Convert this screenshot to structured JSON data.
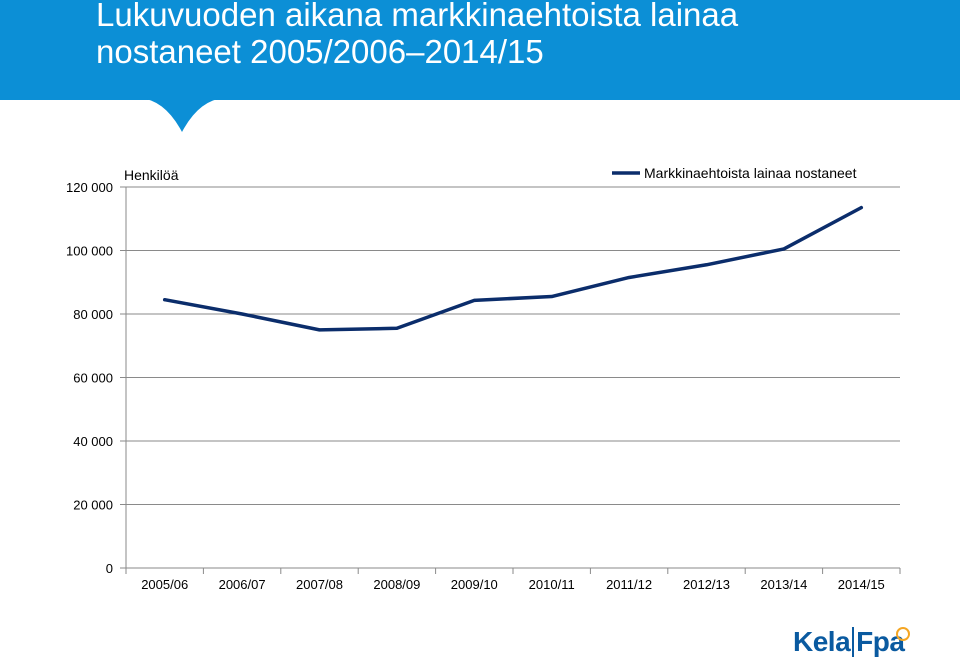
{
  "header": {
    "title_line1": "Lukuvuoden aikana markkinaehtoista lainaa",
    "title_line2": "nostaneet 2005/2006–2014/15"
  },
  "colors": {
    "header_bg": "#0c8fd6",
    "line": "#0b2d6b",
    "grid": "#8a8a8a",
    "logo": "#0a5aa0",
    "logo_badge": "#f5a623"
  },
  "chart_data": {
    "type": "line",
    "ylabel": "Henkilöä",
    "categories": [
      "2005/06",
      "2006/07",
      "2007/08",
      "2008/09",
      "2009/10",
      "2010/11",
      "2011/12",
      "2012/13",
      "2013/14",
      "2014/15"
    ],
    "y_tick_labels": [
      "0",
      "20 000",
      "40 000",
      "60 000",
      "80 000",
      "100 000",
      "120 000"
    ],
    "ylim": [
      0,
      120000
    ],
    "y_ticks": [
      0,
      20000,
      40000,
      60000,
      80000,
      100000,
      120000
    ],
    "grid": true,
    "legend_position": "top-right",
    "series": [
      {
        "name": "Markkinaehtoista lainaa nostaneet",
        "values": [
          84500,
          80000,
          75000,
          75500,
          84300,
          85500,
          91500,
          95500,
          100500,
          113500
        ]
      }
    ]
  },
  "logo": {
    "part1": "Kela",
    "part2": "Fpa"
  }
}
